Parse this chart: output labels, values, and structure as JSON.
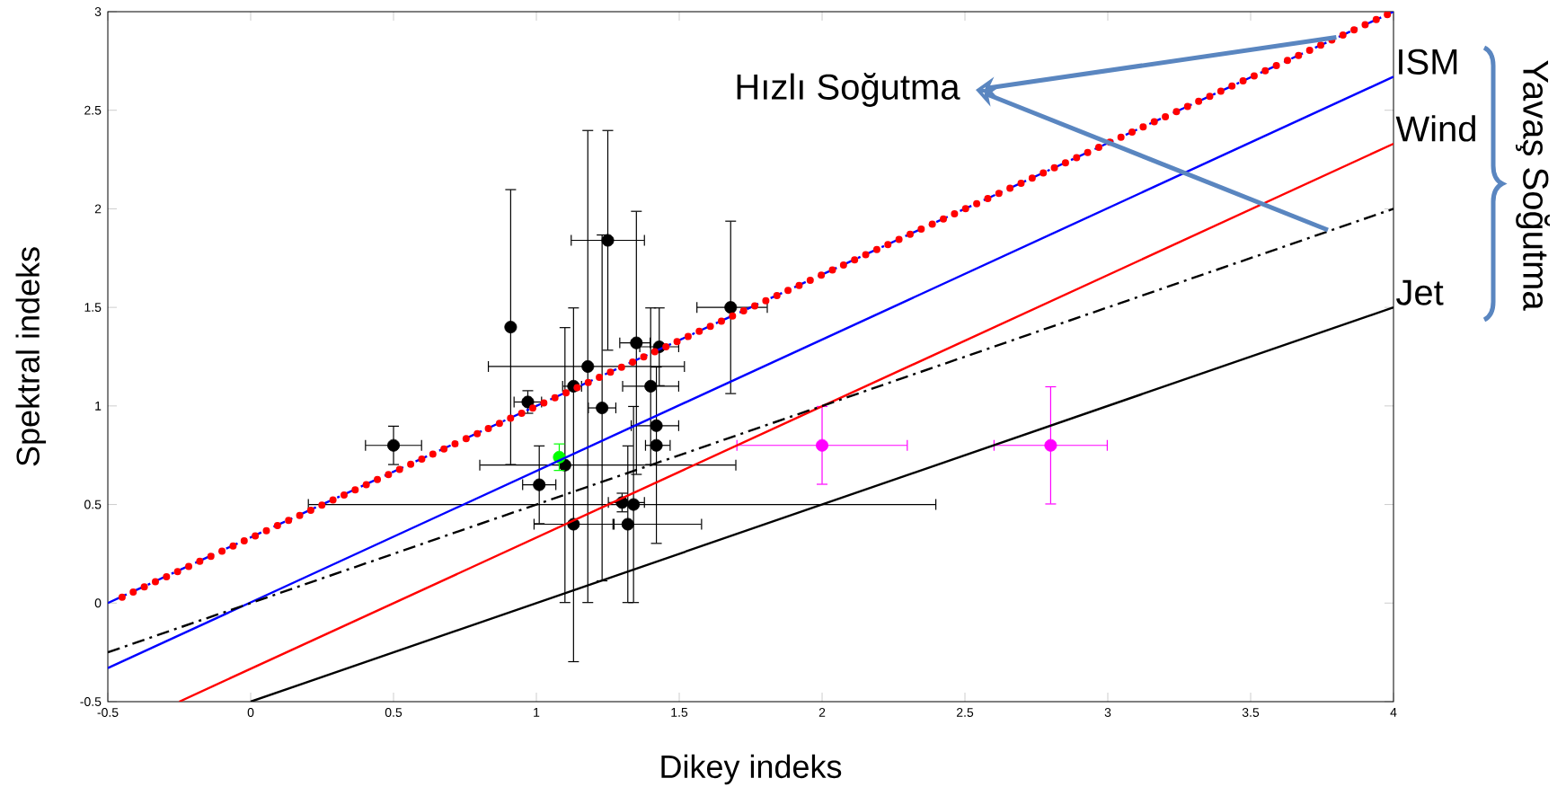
{
  "chart_data": {
    "type": "scatter",
    "xlabel": "Dikey indeks",
    "ylabel": "Spektral indeks",
    "xlim": [
      -0.5,
      4
    ],
    "ylim": [
      -0.5,
      3
    ],
    "xticks": [
      -0.5,
      0,
      0.5,
      1,
      1.5,
      2,
      2.5,
      3,
      3.5,
      4
    ],
    "yticks": [
      -0.5,
      0,
      0.5,
      1,
      1.5,
      2,
      2.5,
      3
    ],
    "annotations": [
      {
        "text": "Hızlı Soğutma",
        "x": 3.8,
        "y": 2.87
      },
      "Yavaş Soğutma"
    ],
    "series": [
      {
        "color": "#000000",
        "marker": "circle",
        "x": [
          0.5,
          0.91,
          0.97,
          1.1,
          1.13,
          1.13,
          1.01,
          1.18,
          1.25,
          1.23,
          1.35,
          1.43,
          1.4,
          1.42,
          1.42,
          1.3,
          1.34,
          1.32,
          1.68
        ],
        "values": [
          0.8,
          1.4,
          1.02,
          0.7,
          1.1,
          0.4,
          0.6,
          1.2,
          1.84,
          0.99,
          1.32,
          1.3,
          1.1,
          0.9,
          0.8,
          0.51,
          0.5,
          0.4,
          1.5
        ],
        "errors": [
          [
            0.7,
            0.9
          ],
          [
            0.7,
            2.1
          ],
          [
            0.96,
            1.08
          ],
          [
            0.0,
            1.4
          ],
          null,
          [
            -0.3,
            1.5
          ],
          [
            0.4,
            0.8
          ],
          [
            0.0,
            2.4
          ],
          [
            1.28,
            2.4
          ],
          [
            0.11,
            1.87
          ],
          [
            0.65,
            1.99
          ],
          [
            1.1,
            1.5
          ],
          [
            0.7,
            1.5
          ],
          [
            0.3,
            1.2
          ],
          null,
          [
            0.46,
            0.56
          ],
          [
            0.0,
            1.0
          ],
          [
            0.0,
            0.8
          ],
          [
            1.06,
            1.94
          ]
        ],
        "xerrors": [
          [
            0.4,
            0.6
          ],
          null,
          [
            0.92,
            1.02
          ],
          [
            0.8,
            1.7
          ],
          [
            1.09,
            1.16
          ],
          [
            0.99,
            1.27
          ],
          [
            0.95,
            1.07
          ],
          [
            0.83,
            1.52
          ],
          [
            1.12,
            1.38
          ],
          [
            1.18,
            1.28
          ],
          [
            1.29,
            1.4
          ],
          [
            1.36,
            1.5
          ],
          [
            1.3,
            1.5
          ],
          [
            1.33,
            1.5
          ],
          [
            1.38,
            1.47
          ],
          [
            1.25,
            1.38
          ],
          [
            0.2,
            2.4
          ],
          [
            1.27,
            1.58
          ],
          [
            1.56,
            1.81
          ]
        ]
      },
      {
        "color": "#00ff00",
        "marker": "circle",
        "x": [
          1.08
        ],
        "values": [
          0.74
        ],
        "errors": [
          [
            0.67,
            0.81
          ]
        ]
      },
      {
        "color": "#ff00ff",
        "marker": "circle",
        "x": [
          2.0,
          2.8
        ],
        "values": [
          0.8,
          0.8
        ],
        "errors": [
          [
            0.6,
            1.0
          ],
          [
            0.5,
            1.1
          ]
        ],
        "xerrors": [
          [
            1.7,
            2.3
          ],
          [
            2.6,
            3.0
          ]
        ]
      },
      {
        "type": "line",
        "color": "#0000ff",
        "line_style": "dashed",
        "marker": "none",
        "x": [
          -0.5,
          4
        ],
        "values": [
          0,
          3
        ]
      },
      {
        "type": "line",
        "color": "#ff0000",
        "line_style": "dotted",
        "marker": "none",
        "x": [
          -0.45,
          4
        ],
        "values": [
          0.03,
          3
        ]
      },
      {
        "type": "line",
        "name": "ISM",
        "color": "#0000ff",
        "line_style": "solid",
        "marker": "none",
        "x": [
          -0.5,
          4
        ],
        "values": [
          -0.33,
          2.67
        ]
      },
      {
        "type": "line",
        "name": "Wind",
        "color": "#ff0000",
        "line_style": "solid",
        "marker": "none",
        "x": [
          -0.25,
          4
        ],
        "values": [
          -0.5,
          2.33
        ]
      },
      {
        "type": "line",
        "color": "#000000",
        "line_style": "dashed",
        "marker": "none",
        "x": [
          -0.5,
          4
        ],
        "values": [
          -0.25,
          2
        ]
      },
      {
        "type": "line",
        "name": "Jet",
        "color": "#000000",
        "line_style": "solid",
        "marker": "none",
        "x": [
          0,
          4
        ],
        "values": [
          -0.5,
          1.5
        ]
      }
    ]
  }
}
